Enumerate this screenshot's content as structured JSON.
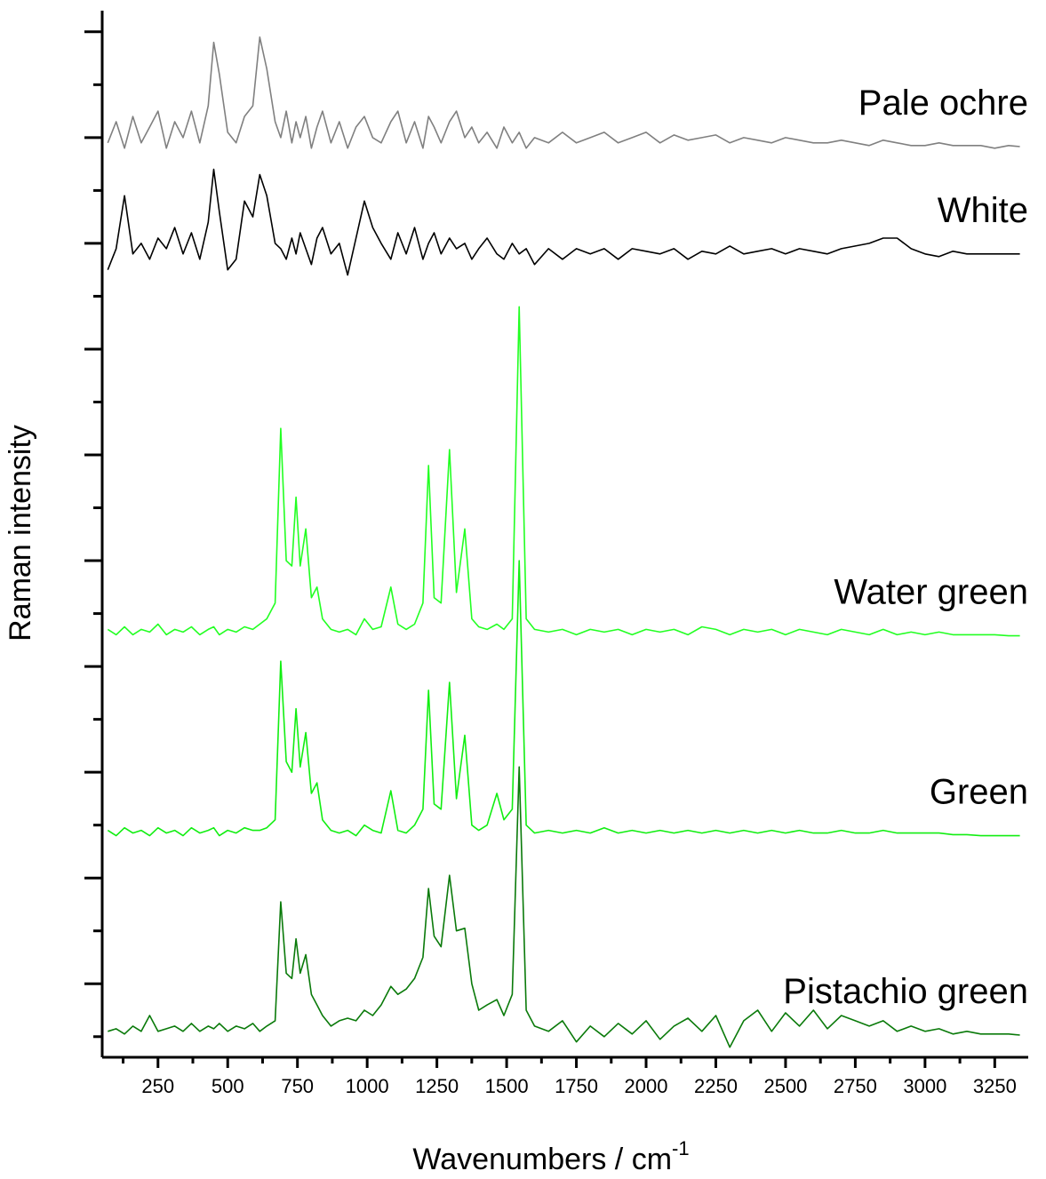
{
  "chart_data": {
    "type": "line",
    "xlabel": "Wavenumbers / cm",
    "xlabel_superscript": "-1",
    "ylabel": "Raman intensity",
    "xlim": [
      50,
      3370
    ],
    "ylim": [
      -0.39,
      19.4
    ],
    "xticks": [
      250,
      500,
      750,
      1000,
      1250,
      1500,
      1750,
      2000,
      2250,
      2500,
      2750,
      3000,
      3250
    ],
    "xminorticks": [
      125,
      375,
      625,
      875,
      1125,
      1375,
      1625,
      1875,
      2125,
      2375,
      2625,
      2875,
      3125
    ],
    "yticks": [
      1,
      3,
      5,
      7,
      9,
      11,
      13,
      15,
      17,
      19
    ],
    "yminorticks": [
      0,
      2,
      4,
      6,
      8,
      10,
      12,
      14,
      16,
      18
    ],
    "x": [
      70,
      100,
      130,
      160,
      190,
      220,
      250,
      280,
      310,
      340,
      370,
      400,
      430,
      450,
      470,
      500,
      530,
      560,
      590,
      615,
      640,
      670,
      690,
      710,
      730,
      745,
      760,
      780,
      800,
      820,
      840,
      870,
      900,
      930,
      960,
      990,
      1020,
      1050,
      1085,
      1110,
      1140,
      1170,
      1200,
      1220,
      1240,
      1265,
      1295,
      1320,
      1350,
      1375,
      1400,
      1430,
      1465,
      1490,
      1520,
      1545,
      1570,
      1600,
      1650,
      1700,
      1750,
      1800,
      1850,
      1900,
      1950,
      2000,
      2050,
      2100,
      2150,
      2200,
      2250,
      2300,
      2350,
      2400,
      2450,
      2500,
      2550,
      2600,
      2650,
      2700,
      2750,
      2800,
      2850,
      2900,
      2950,
      3000,
      3050,
      3100,
      3150,
      3200,
      3250,
      3300,
      3340
    ],
    "series": [
      {
        "name": "Pale ochre",
        "color": "#808080",
        "values": [
          16.9,
          17.3,
          16.8,
          17.4,
          16.9,
          17.2,
          17.5,
          16.8,
          17.3,
          17.0,
          17.5,
          16.9,
          17.6,
          18.8,
          18.2,
          17.1,
          16.9,
          17.4,
          17.6,
          18.9,
          18.3,
          17.3,
          17.0,
          17.5,
          16.9,
          17.3,
          17.0,
          17.4,
          16.8,
          17.2,
          17.5,
          16.9,
          17.3,
          16.8,
          17.2,
          17.4,
          17.0,
          16.9,
          17.3,
          17.5,
          16.9,
          17.3,
          16.8,
          17.4,
          17.2,
          16.9,
          17.3,
          17.5,
          17.0,
          17.2,
          16.9,
          17.1,
          16.8,
          17.2,
          16.9,
          17.1,
          16.8,
          17.0,
          16.9,
          17.1,
          16.9,
          17.0,
          17.1,
          16.9,
          17.0,
          17.1,
          16.9,
          17.05,
          16.95,
          17.0,
          17.05,
          16.9,
          17.0,
          16.95,
          16.9,
          17.0,
          16.95,
          16.9,
          16.9,
          16.95,
          16.9,
          16.85,
          16.95,
          16.9,
          16.85,
          16.85,
          16.9,
          16.85,
          16.85,
          16.85,
          16.8,
          16.85,
          16.83
        ]
      },
      {
        "name": "White",
        "color": "#000000",
        "values": [
          14.5,
          14.9,
          15.9,
          14.8,
          15.0,
          14.7,
          15.1,
          14.9,
          15.3,
          14.8,
          15.2,
          14.7,
          15.4,
          16.4,
          15.6,
          14.5,
          14.7,
          15.8,
          15.5,
          16.3,
          15.9,
          15.0,
          14.9,
          14.7,
          15.1,
          14.8,
          15.2,
          14.9,
          14.6,
          15.1,
          15.3,
          14.8,
          15.0,
          14.4,
          15.1,
          15.8,
          15.3,
          15.0,
          14.7,
          15.2,
          14.8,
          15.3,
          14.7,
          15.0,
          15.2,
          14.8,
          15.1,
          14.9,
          15.0,
          14.7,
          14.9,
          15.1,
          14.8,
          14.7,
          15.0,
          14.8,
          14.9,
          14.6,
          14.9,
          14.7,
          14.9,
          14.8,
          14.9,
          14.7,
          14.9,
          14.85,
          14.8,
          14.9,
          14.7,
          14.85,
          14.8,
          14.95,
          14.8,
          14.85,
          14.9,
          14.8,
          14.9,
          14.85,
          14.8,
          14.9,
          14.95,
          15.0,
          15.1,
          15.1,
          14.9,
          14.8,
          14.75,
          14.85,
          14.8,
          14.8,
          14.8,
          14.8,
          14.8
        ]
      },
      {
        "name": "Water green",
        "color": "#22ff22",
        "values": [
          7.7,
          7.6,
          7.75,
          7.6,
          7.7,
          7.65,
          7.8,
          7.6,
          7.7,
          7.65,
          7.75,
          7.6,
          7.7,
          7.75,
          7.6,
          7.7,
          7.65,
          7.75,
          7.7,
          7.8,
          7.9,
          8.2,
          11.5,
          9.0,
          8.9,
          10.2,
          8.9,
          9.6,
          8.3,
          8.5,
          7.9,
          7.7,
          7.65,
          7.7,
          7.6,
          7.9,
          7.7,
          7.75,
          8.5,
          7.8,
          7.7,
          7.8,
          8.2,
          10.8,
          8.3,
          8.2,
          11.1,
          8.4,
          9.6,
          7.9,
          7.75,
          7.7,
          7.8,
          7.7,
          7.9,
          13.8,
          7.9,
          7.7,
          7.65,
          7.7,
          7.6,
          7.7,
          7.65,
          7.7,
          7.6,
          7.7,
          7.65,
          7.7,
          7.6,
          7.75,
          7.7,
          7.6,
          7.7,
          7.65,
          7.7,
          7.6,
          7.7,
          7.65,
          7.6,
          7.7,
          7.65,
          7.6,
          7.7,
          7.6,
          7.65,
          7.6,
          7.65,
          7.6,
          7.6,
          7.6,
          7.6,
          7.58,
          7.58
        ]
      },
      {
        "name": "Green",
        "color": "#11ee11",
        "values": [
          3.9,
          3.8,
          3.95,
          3.85,
          3.9,
          3.8,
          3.95,
          3.85,
          3.9,
          3.8,
          3.95,
          3.85,
          3.9,
          3.95,
          3.8,
          3.9,
          3.85,
          3.95,
          3.9,
          3.9,
          3.95,
          4.1,
          7.1,
          5.2,
          5.0,
          6.2,
          5.1,
          5.75,
          4.6,
          4.8,
          4.1,
          3.9,
          3.85,
          3.9,
          3.8,
          4.0,
          3.9,
          3.85,
          4.65,
          3.9,
          3.85,
          4.0,
          4.3,
          6.55,
          4.4,
          4.3,
          6.7,
          4.5,
          5.7,
          4.0,
          3.9,
          4.0,
          4.6,
          4.1,
          4.3,
          9.0,
          4.0,
          3.85,
          3.9,
          3.85,
          3.9,
          3.85,
          3.95,
          3.85,
          3.9,
          3.85,
          3.9,
          3.85,
          3.9,
          3.85,
          3.9,
          3.85,
          3.9,
          3.85,
          3.9,
          3.85,
          3.9,
          3.85,
          3.85,
          3.9,
          3.85,
          3.85,
          3.9,
          3.85,
          3.85,
          3.85,
          3.85,
          3.82,
          3.82,
          3.8,
          3.8,
          3.8,
          3.8
        ]
      },
      {
        "name": "Pistachio green",
        "color": "#0a7a0a",
        "values": [
          0.1,
          0.15,
          0.05,
          0.2,
          0.1,
          0.4,
          0.1,
          0.15,
          0.2,
          0.1,
          0.25,
          0.1,
          0.2,
          0.15,
          0.25,
          0.1,
          0.2,
          0.15,
          0.25,
          0.1,
          0.2,
          0.3,
          2.55,
          1.2,
          1.1,
          1.85,
          1.2,
          1.55,
          0.8,
          0.6,
          0.4,
          0.2,
          0.3,
          0.35,
          0.3,
          0.5,
          0.4,
          0.6,
          0.95,
          0.8,
          0.9,
          1.1,
          1.5,
          2.8,
          1.9,
          1.7,
          3.05,
          2.0,
          2.05,
          1.0,
          0.5,
          0.6,
          0.7,
          0.4,
          0.8,
          5.1,
          0.5,
          0.2,
          0.1,
          0.3,
          -0.1,
          0.2,
          0.0,
          0.25,
          0.05,
          0.3,
          -0.05,
          0.2,
          0.35,
          0.1,
          0.4,
          -0.2,
          0.3,
          0.5,
          0.1,
          0.45,
          0.2,
          0.5,
          0.15,
          0.4,
          0.3,
          0.2,
          0.3,
          0.1,
          0.2,
          0.1,
          0.15,
          0.05,
          0.1,
          0.05,
          0.05,
          0.05,
          0.03
        ]
      }
    ]
  }
}
